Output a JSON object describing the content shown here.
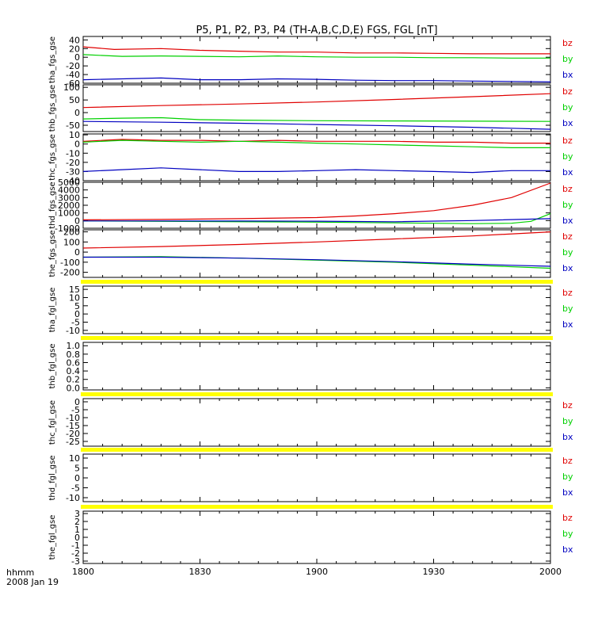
{
  "title": "P5, P1, P2, P3, P4 (TH-A,B,C,D,E) FGS, FGL [nT]",
  "footer": {
    "line1": "hhmm",
    "line2": "2008 Jan 19"
  },
  "colors": {
    "bz": "#e00000",
    "by": "#00d000",
    "bx": "#0000c0",
    "nodata": "#ffff00",
    "frame": "#000000"
  },
  "chart_data": {
    "type": "line",
    "title": "P5, P1, P2, P3, P4 (TH-A,B,C,D,E) FGS, FGL [nT]",
    "x": {
      "label": "hhmm",
      "date": "2008 Jan 19",
      "ticks": [
        "1800",
        "1830",
        "1900",
        "1930",
        "2000"
      ],
      "range_minutes": [
        0,
        120
      ]
    },
    "panels": [
      {
        "ylabel": "tha_fgs_gse",
        "ylim": [
          -60,
          48
        ],
        "yticks": [
          "40",
          "20",
          "0",
          "-20",
          "-40",
          "-60"
        ],
        "legend": [
          "bz",
          "by",
          "bx"
        ],
        "nodata": false,
        "series": [
          {
            "name": "bz",
            "x": [
              0,
              8,
              20,
              30,
              40,
              50,
              60,
              70,
              80,
              90,
              100,
              110,
              120
            ],
            "values": [
              24,
              18,
              20,
              16,
              14,
              12,
              12,
              10,
              10,
              9,
              8,
              8,
              8
            ]
          },
          {
            "name": "by",
            "x": [
              0,
              10,
              20,
              30,
              40,
              50,
              60,
              70,
              80,
              90,
              100,
              110,
              120
            ],
            "values": [
              6,
              2,
              3,
              2,
              1,
              3,
              1,
              0,
              0,
              -1,
              -1,
              -2,
              -2
            ]
          },
          {
            "name": "bx",
            "x": [
              0,
              10,
              20,
              30,
              40,
              50,
              60,
              70,
              80,
              90,
              100,
              110,
              120
            ],
            "values": [
              -52,
              -50,
              -48,
              -52,
              -52,
              -50,
              -51,
              -53,
              -54,
              -54,
              -55,
              -56,
              -57
            ]
          }
        ]
      },
      {
        "ylabel": "thb_fgs_gse",
        "ylim": [
          -75,
          110
        ],
        "yticks": [
          "100",
          "50",
          "0",
          "-50"
        ],
        "legend": [
          "bz",
          "by",
          "bx"
        ],
        "nodata": false,
        "series": [
          {
            "name": "bz",
            "x": [
              0,
              20,
              40,
              60,
              80,
              100,
              120
            ],
            "values": [
              20,
              28,
              34,
              42,
              52,
              63,
              75
            ]
          },
          {
            "name": "by",
            "x": [
              0,
              10,
              20,
              30,
              40,
              60,
              80,
              100,
              120
            ],
            "values": [
              -25,
              -22,
              -20,
              -28,
              -30,
              -32,
              -33,
              -34,
              -35
            ]
          },
          {
            "name": "bx",
            "x": [
              0,
              20,
              40,
              60,
              80,
              100,
              120
            ],
            "values": [
              -35,
              -38,
              -42,
              -47,
              -52,
              -58,
              -66
            ]
          }
        ]
      },
      {
        "ylabel": "thc_fgs_gse",
        "ylim": [
          -40,
          11
        ],
        "yticks": [
          "10",
          "0",
          "-10",
          "-20",
          "-30",
          "-40"
        ],
        "legend": [
          "bz",
          "by",
          "bx"
        ],
        "nodata": false,
        "series": [
          {
            "name": "bz",
            "x": [
              0,
              10,
              20,
              30,
              40,
              50,
              60,
              70,
              80,
              90,
              100,
              110,
              120
            ],
            "values": [
              3,
              5,
              4,
              4,
              3,
              4,
              3,
              3,
              3,
              2,
              2,
              1,
              1
            ]
          },
          {
            "name": "by",
            "x": [
              0,
              10,
              20,
              30,
              40,
              50,
              60,
              70,
              80,
              90,
              100,
              110,
              120
            ],
            "values": [
              2,
              4,
              3,
              2,
              3,
              2,
              1,
              0,
              -1,
              -2,
              -3,
              -4,
              -4
            ]
          },
          {
            "name": "bx",
            "x": [
              0,
              10,
              20,
              30,
              40,
              50,
              60,
              70,
              80,
              90,
              100,
              110,
              120
            ],
            "values": [
              -30,
              -28,
              -26,
              -28,
              -30,
              -30,
              -29,
              -28,
              -29,
              -30,
              -31,
              -29,
              -29
            ]
          }
        ]
      },
      {
        "ylabel": "thd_fgs_gse",
        "ylim": [
          -1000,
          5000
        ],
        "yticks": [
          "5000",
          "4000",
          "3000",
          "2000",
          "1000",
          "0",
          "-1000"
        ],
        "legend": [
          "bz",
          "by",
          "bx"
        ],
        "nodata": false,
        "series": [
          {
            "name": "bz",
            "x": [
              0,
              20,
              40,
              60,
              70,
              80,
              90,
              100,
              110,
              120
            ],
            "values": [
              100,
              150,
              250,
              400,
              600,
              900,
              1300,
              2000,
              3000,
              4900
            ]
          },
          {
            "name": "by",
            "x": [
              0,
              20,
              40,
              60,
              80,
              100,
              110,
              115,
              120
            ],
            "values": [
              -50,
              -100,
              -150,
              -200,
              -300,
              -400,
              -350,
              -100,
              900
            ]
          },
          {
            "name": "bx",
            "x": [
              0,
              20,
              40,
              60,
              80,
              100,
              120
            ],
            "values": [
              -50,
              -50,
              -60,
              -80,
              -150,
              0,
              250
            ]
          }
        ]
      },
      {
        "ylabel": "the_fgs_gse",
        "ylim": [
          -250,
          220
        ],
        "yticks": [
          "200",
          "100",
          "0",
          "-100",
          "-200"
        ],
        "legend": [
          "bz",
          "by",
          "bx"
        ],
        "nodata": false,
        "series": [
          {
            "name": "bz",
            "x": [
              0,
              20,
              40,
              60,
              80,
              100,
              120
            ],
            "values": [
              40,
              55,
              75,
              100,
              130,
              160,
              200
            ]
          },
          {
            "name": "by",
            "x": [
              0,
              20,
              40,
              60,
              80,
              100,
              120
            ],
            "values": [
              -50,
              -45,
              -60,
              -80,
              -100,
              -130,
              -160
            ]
          },
          {
            "name": "bx",
            "x": [
              0,
              20,
              40,
              60,
              80,
              100,
              120
            ],
            "values": [
              -50,
              -50,
              -60,
              -75,
              -95,
              -120,
              -140
            ]
          }
        ]
      },
      {
        "ylabel": "tha_fgl_gse",
        "ylim": [
          -12,
          17
        ],
        "yticks": [
          "15",
          "10",
          "5",
          "0",
          "-5",
          "-10"
        ],
        "legend": [
          "bz",
          "by",
          "bx"
        ],
        "nodata": true,
        "series": []
      },
      {
        "ylabel": "thb_fgl_gse",
        "ylim": [
          -0.05,
          1.08
        ],
        "yticks": [
          "1.0",
          "0.8",
          "0.6",
          "0.4",
          "0.2",
          "0.0"
        ],
        "legend": [],
        "nodata": true,
        "series": []
      },
      {
        "ylabel": "thc_fgl_gse",
        "ylim": [
          -28,
          2
        ],
        "yticks": [
          "0",
          "-5",
          "-10",
          "-15",
          "-20",
          "-25"
        ],
        "legend": [
          "bz",
          "by",
          "bx"
        ],
        "nodata": true,
        "series": []
      },
      {
        "ylabel": "thd_fgl_gse",
        "ylim": [
          -12,
          12
        ],
        "yticks": [
          "10",
          "5",
          "0",
          "-5",
          "-10"
        ],
        "legend": [
          "bz",
          "by",
          "bx"
        ],
        "nodata": true,
        "series": []
      },
      {
        "ylabel": "the_fgl_gse",
        "ylim": [
          -3.3,
          3.3
        ],
        "yticks": [
          "3",
          "2",
          "1",
          "0",
          "-1",
          "-2",
          "-3"
        ],
        "legend": [
          "bz",
          "by",
          "bx"
        ],
        "nodata": true,
        "series": []
      }
    ]
  }
}
